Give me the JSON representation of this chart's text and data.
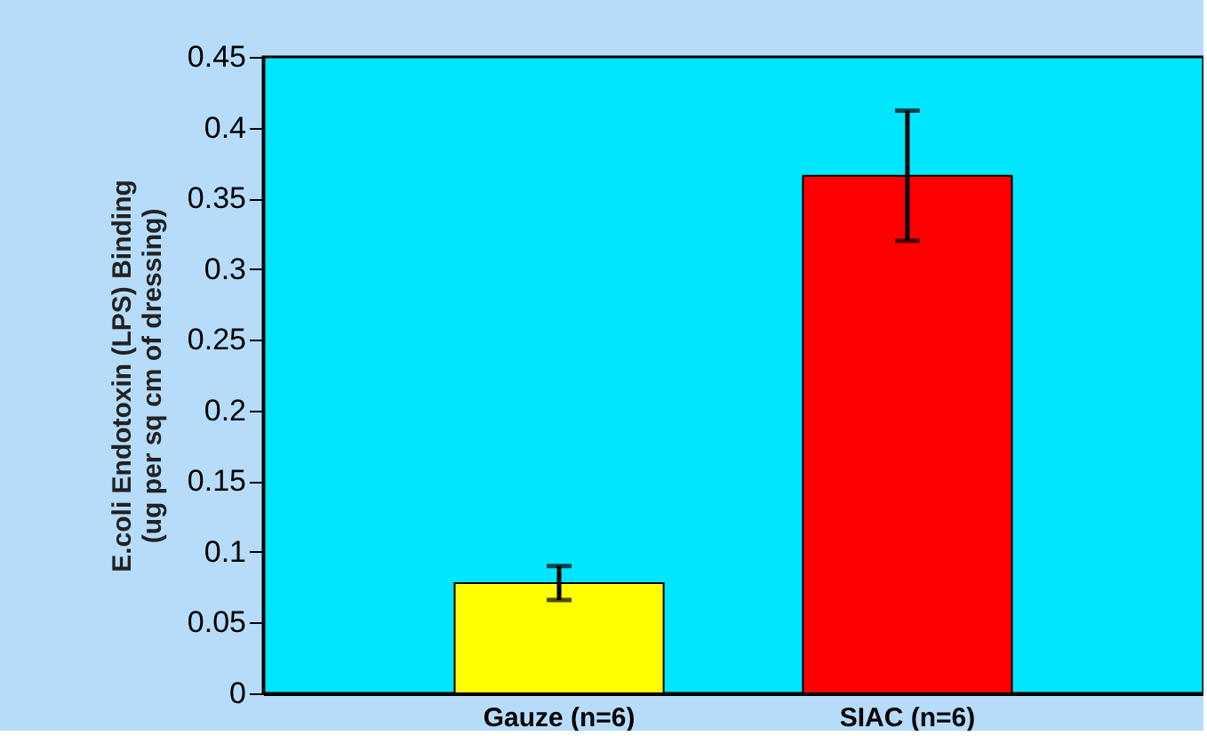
{
  "chart_data": {
    "type": "bar",
    "ylabel": "E.coli Endotoxin (LPS) Binding\n(ug per sq cm of dressing)",
    "categories": [
      "Gauze (n=6)",
      "SIAC (n=6)"
    ],
    "values": [
      0.078,
      0.366
    ],
    "colors": [
      "#ffff00",
      "#ff0000"
    ],
    "errors": [
      0.012,
      0.046
    ],
    "ylim": [
      0,
      0.45
    ],
    "yticks": [
      0,
      0.05,
      0.1,
      0.15,
      0.2,
      0.25,
      0.3,
      0.35,
      0.4,
      0.45
    ],
    "grid": false,
    "legend": false
  }
}
